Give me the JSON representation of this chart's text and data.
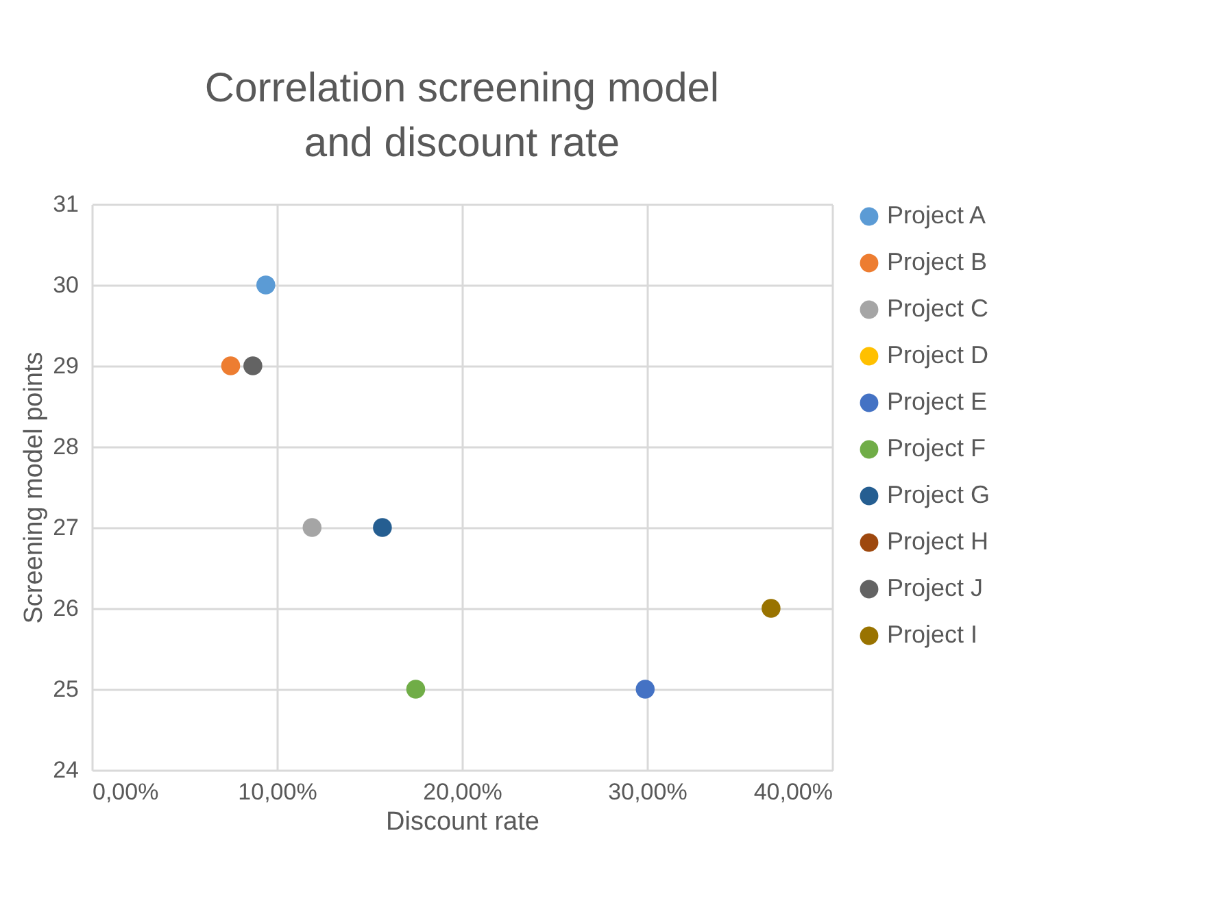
{
  "chart_data": {
    "type": "scatter",
    "title": "Correlation screening model and discount rate",
    "xlabel": "Discount rate",
    "ylabel": "Screening model points",
    "xlim": [
      0,
      40
    ],
    "xticks": [
      {
        "value": 0,
        "label": "0,00%"
      },
      {
        "value": 10,
        "label": "10,00%"
      },
      {
        "value": 20,
        "label": "20,00%"
      },
      {
        "value": 30,
        "label": "30,00%"
      },
      {
        "value": 40,
        "label": "40,00%"
      }
    ],
    "ylim": [
      24,
      31
    ],
    "yticks": [
      24,
      25,
      26,
      27,
      28,
      29,
      30,
      31
    ],
    "grid": true,
    "legend": "right",
    "marker": "circle",
    "series": [
      {
        "name": "Project A",
        "color": "#5b9bd5",
        "x": [
          9.4
        ],
        "values": [
          30
        ]
      },
      {
        "name": "Project B",
        "color": "#ed7d31",
        "x": [
          7.5
        ],
        "values": [
          29
        ]
      },
      {
        "name": "Project C",
        "color": "#a5a5a5",
        "x": [
          11.9
        ],
        "values": [
          27
        ]
      },
      {
        "name": "Project D",
        "color": "#ffc000",
        "x": [
          null
        ],
        "values": [
          null
        ]
      },
      {
        "name": "Project E",
        "color": "#4472c4",
        "x": [
          29.9
        ],
        "values": [
          25
        ]
      },
      {
        "name": "Project F",
        "color": "#70ad47",
        "x": [
          17.5
        ],
        "values": [
          25
        ]
      },
      {
        "name": "Project G",
        "color": "#255e91",
        "x": [
          15.7
        ],
        "values": [
          27
        ]
      },
      {
        "name": "Project H",
        "color": "#9e480e",
        "x": [
          null
        ],
        "values": [
          null
        ]
      },
      {
        "name": "Project J",
        "color": "#636363",
        "x": [
          8.7
        ],
        "values": [
          29
        ]
      },
      {
        "name": "Project I",
        "color": "#997300",
        "x": [
          36.7
        ],
        "values": [
          26
        ]
      }
    ]
  }
}
